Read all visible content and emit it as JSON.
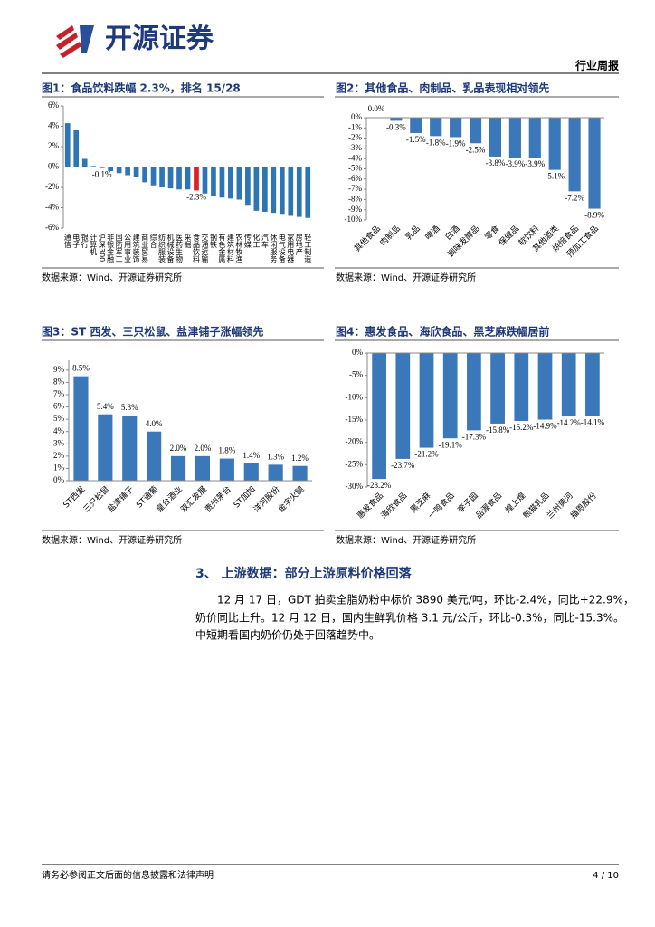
{
  "header": {
    "brand": "开源证券",
    "report_type": "行业周报"
  },
  "chart_data": [
    {
      "type": "bar",
      "title": "图1：食品饮料跌幅 2.3%，排名 15/28",
      "source": "数据来源：Wind、开源证券研究所",
      "categories": [
        "通信",
        "电子",
        "银行",
        "计算机",
        "沪深300",
        "非银金融",
        "国防军工",
        "公用事业",
        "建筑装饰",
        "商业贸易",
        "综合",
        "纺织服装",
        "机械设备",
        "医药生物",
        "采掘",
        "食品饮料",
        "交通运输",
        "钢铁",
        "有色金属",
        "建筑材料",
        "农林牧渔",
        "传媒",
        "化工",
        "汽车",
        "休闲服务",
        "电气设备",
        "家用电器",
        "房地产",
        "轻工制造"
      ],
      "values": [
        4.3,
        3.6,
        0.8,
        0.1,
        -0.1,
        -0.4,
        -0.6,
        -0.8,
        -1.0,
        -1.5,
        -1.8,
        -2.0,
        -2.1,
        -2.2,
        -2.2,
        -2.3,
        -2.6,
        -2.8,
        -3.0,
        -3.1,
        -3.2,
        -3.8,
        -4.3,
        -4.4,
        -4.5,
        -4.6,
        -4.8,
        -4.9,
        -5.0
      ],
      "value_labels": [
        null,
        null,
        null,
        null,
        "-0.1%",
        null,
        null,
        null,
        null,
        null,
        null,
        null,
        null,
        null,
        null,
        "-2.3%",
        null,
        null,
        null,
        null,
        null,
        null,
        null,
        null,
        null,
        null,
        null,
        null,
        null
      ],
      "color": "#2e75b6",
      "colors": [
        "#2e75b6",
        "#2e75b6",
        "#2e75b6",
        "#2e75b6",
        "#e02020",
        "#2e75b6",
        "#2e75b6",
        "#2e75b6",
        "#2e75b6",
        "#2e75b6",
        "#2e75b6",
        "#2e75b6",
        "#2e75b6",
        "#2e75b6",
        "#2e75b6",
        "#e02020",
        "#2e75b6",
        "#2e75b6",
        "#2e75b6",
        "#2e75b6",
        "#2e75b6",
        "#2e75b6",
        "#2e75b6",
        "#2e75b6",
        "#2e75b6",
        "#2e75b6",
        "#2e75b6",
        "#2e75b6",
        "#2e75b6"
      ],
      "ylim": [
        -6,
        6
      ],
      "yticks": [
        {
          "value": -6,
          "label": "-6%"
        },
        {
          "value": -4,
          "label": "-4%"
        },
        {
          "value": -2,
          "label": "-2%"
        },
        {
          "value": 0,
          "label": "0%"
        },
        {
          "value": 2,
          "label": "2%"
        },
        {
          "value": 4,
          "label": "4%"
        },
        {
          "value": 6,
          "label": "6%"
        }
      ],
      "label_orientation": "vertical"
    },
    {
      "type": "bar",
      "title": "图2：其他食品、肉制品、乳品表现相对领先",
      "source": "数据来源：Wind、开源证券研究所",
      "categories": [
        "其他食品",
        "肉制品",
        "乳品",
        "啤酒",
        "白酒",
        "调味发酵品",
        "零食",
        "保健品",
        "软饮料",
        "其他酒类",
        "烘焙食品",
        "预加工食品"
      ],
      "values": [
        0.0,
        -0.3,
        -1.5,
        -1.8,
        -1.9,
        -2.5,
        -3.8,
        -3.9,
        -3.9,
        -5.1,
        -7.2,
        -8.9
      ],
      "value_labels": [
        "0.0%",
        "-0.3%",
        "-1.5%",
        "-1.8%",
        "-1.9%",
        "-2.5%",
        "-3.8%",
        "-3.9%",
        "-3.9%",
        "-5.1%",
        "-7.2%",
        "-8.9%"
      ],
      "color": "#3a78ba",
      "ylim": [
        -10,
        0
      ],
      "yticks": [
        {
          "value": -10,
          "label": "-10%"
        },
        {
          "value": -9,
          "label": "-9%"
        },
        {
          "value": -8,
          "label": "-8%"
        },
        {
          "value": -7,
          "label": "-7%"
        },
        {
          "value": -6,
          "label": "-6%"
        },
        {
          "value": -5,
          "label": "-5%"
        },
        {
          "value": -4,
          "label": "-4%"
        },
        {
          "value": -3,
          "label": "-3%"
        },
        {
          "value": -2,
          "label": "-2%"
        },
        {
          "value": -1,
          "label": "-1%"
        },
        {
          "value": 0,
          "label": "0%"
        }
      ],
      "label_orientation": "diagonal"
    },
    {
      "type": "bar",
      "title": "图3：ST 西发、三只松鼠、盐津铺子涨幅领先",
      "source": "数据来源：Wind、开源证券研究所",
      "categories": [
        "ST西发",
        "三只松鼠",
        "盐津铺子",
        "ST通葡",
        "皇台酒业",
        "双汇发展",
        "贵州茅台",
        "ST加加",
        "洋河股份",
        "金字火腿"
      ],
      "values": [
        8.5,
        5.4,
        5.3,
        4.0,
        2.0,
        2.0,
        1.8,
        1.4,
        1.3,
        1.2
      ],
      "value_labels": [
        "8.5%",
        "5.4%",
        "5.3%",
        "4.0%",
        "2.0%",
        "2.0%",
        "1.8%",
        "1.4%",
        "1.3%",
        "1.2%"
      ],
      "color": "#3a78ba",
      "ylim": [
        0,
        9.8
      ],
      "yticks": [
        {
          "value": 0,
          "label": "0%"
        },
        {
          "value": 1,
          "label": "1%"
        },
        {
          "value": 2,
          "label": "2%"
        },
        {
          "value": 3,
          "label": "3%"
        },
        {
          "value": 4,
          "label": "4%"
        },
        {
          "value": 5,
          "label": "5%"
        },
        {
          "value": 6,
          "label": "6%"
        },
        {
          "value": 7,
          "label": "7%"
        },
        {
          "value": 8,
          "label": "8%"
        },
        {
          "value": 9,
          "label": "9%"
        }
      ],
      "label_orientation": "diagonal"
    },
    {
      "type": "bar",
      "title": "图4：惠发食品、海欣食品、黑芝麻跌幅居前",
      "source": "数据来源：Wind、开源证券研究所",
      "categories": [
        "惠发食品",
        "海欣食品",
        "黑芝麻",
        "一鸣食品",
        "李子园",
        "品渥食品",
        "煌上煌",
        "熊猫乳品",
        "兰州黄河",
        "播恩股份"
      ],
      "values": [
        -28.2,
        -23.7,
        -21.2,
        -19.1,
        -17.3,
        -15.8,
        -15.2,
        -14.9,
        -14.2,
        -14.1
      ],
      "value_labels": [
        "-28.2%",
        "-23.7%",
        "-21.2%",
        "-19.1%",
        "-17.3%",
        "-15.8%",
        "-15.2%",
        "-14.9%",
        "-14.2%",
        "-14.1%"
      ],
      "color": "#3a78ba",
      "ylim": [
        -30,
        0
      ],
      "yticks": [
        {
          "value": -30,
          "label": "-30%"
        },
        {
          "value": -25,
          "label": "-25%"
        },
        {
          "value": -20,
          "label": "-20%"
        },
        {
          "value": -15,
          "label": "-15%"
        },
        {
          "value": -10,
          "label": "-10%"
        },
        {
          "value": -5,
          "label": "-5%"
        },
        {
          "value": 0,
          "label": "0%"
        }
      ],
      "label_orientation": "diagonal"
    }
  ],
  "section": {
    "title": "3、 上游数据：部分上游原料价格回落",
    "paragraph": [
      "12 月 17 日，GDT 拍卖全脂奶粉中标价 3890 美元/吨，环比-2.4%，同比+22.9%，",
      "奶价同比上升。12 月 12 日，国内生鲜乳价格 3.1 元/公斤，环比-0.3%，同比-15.3%。",
      "中短期看国内奶价仍处于回落趋势中。"
    ]
  },
  "footer": {
    "disclaimer": "请务必参阅正文后面的信息披露和法律声明",
    "page": "4 / 10"
  }
}
